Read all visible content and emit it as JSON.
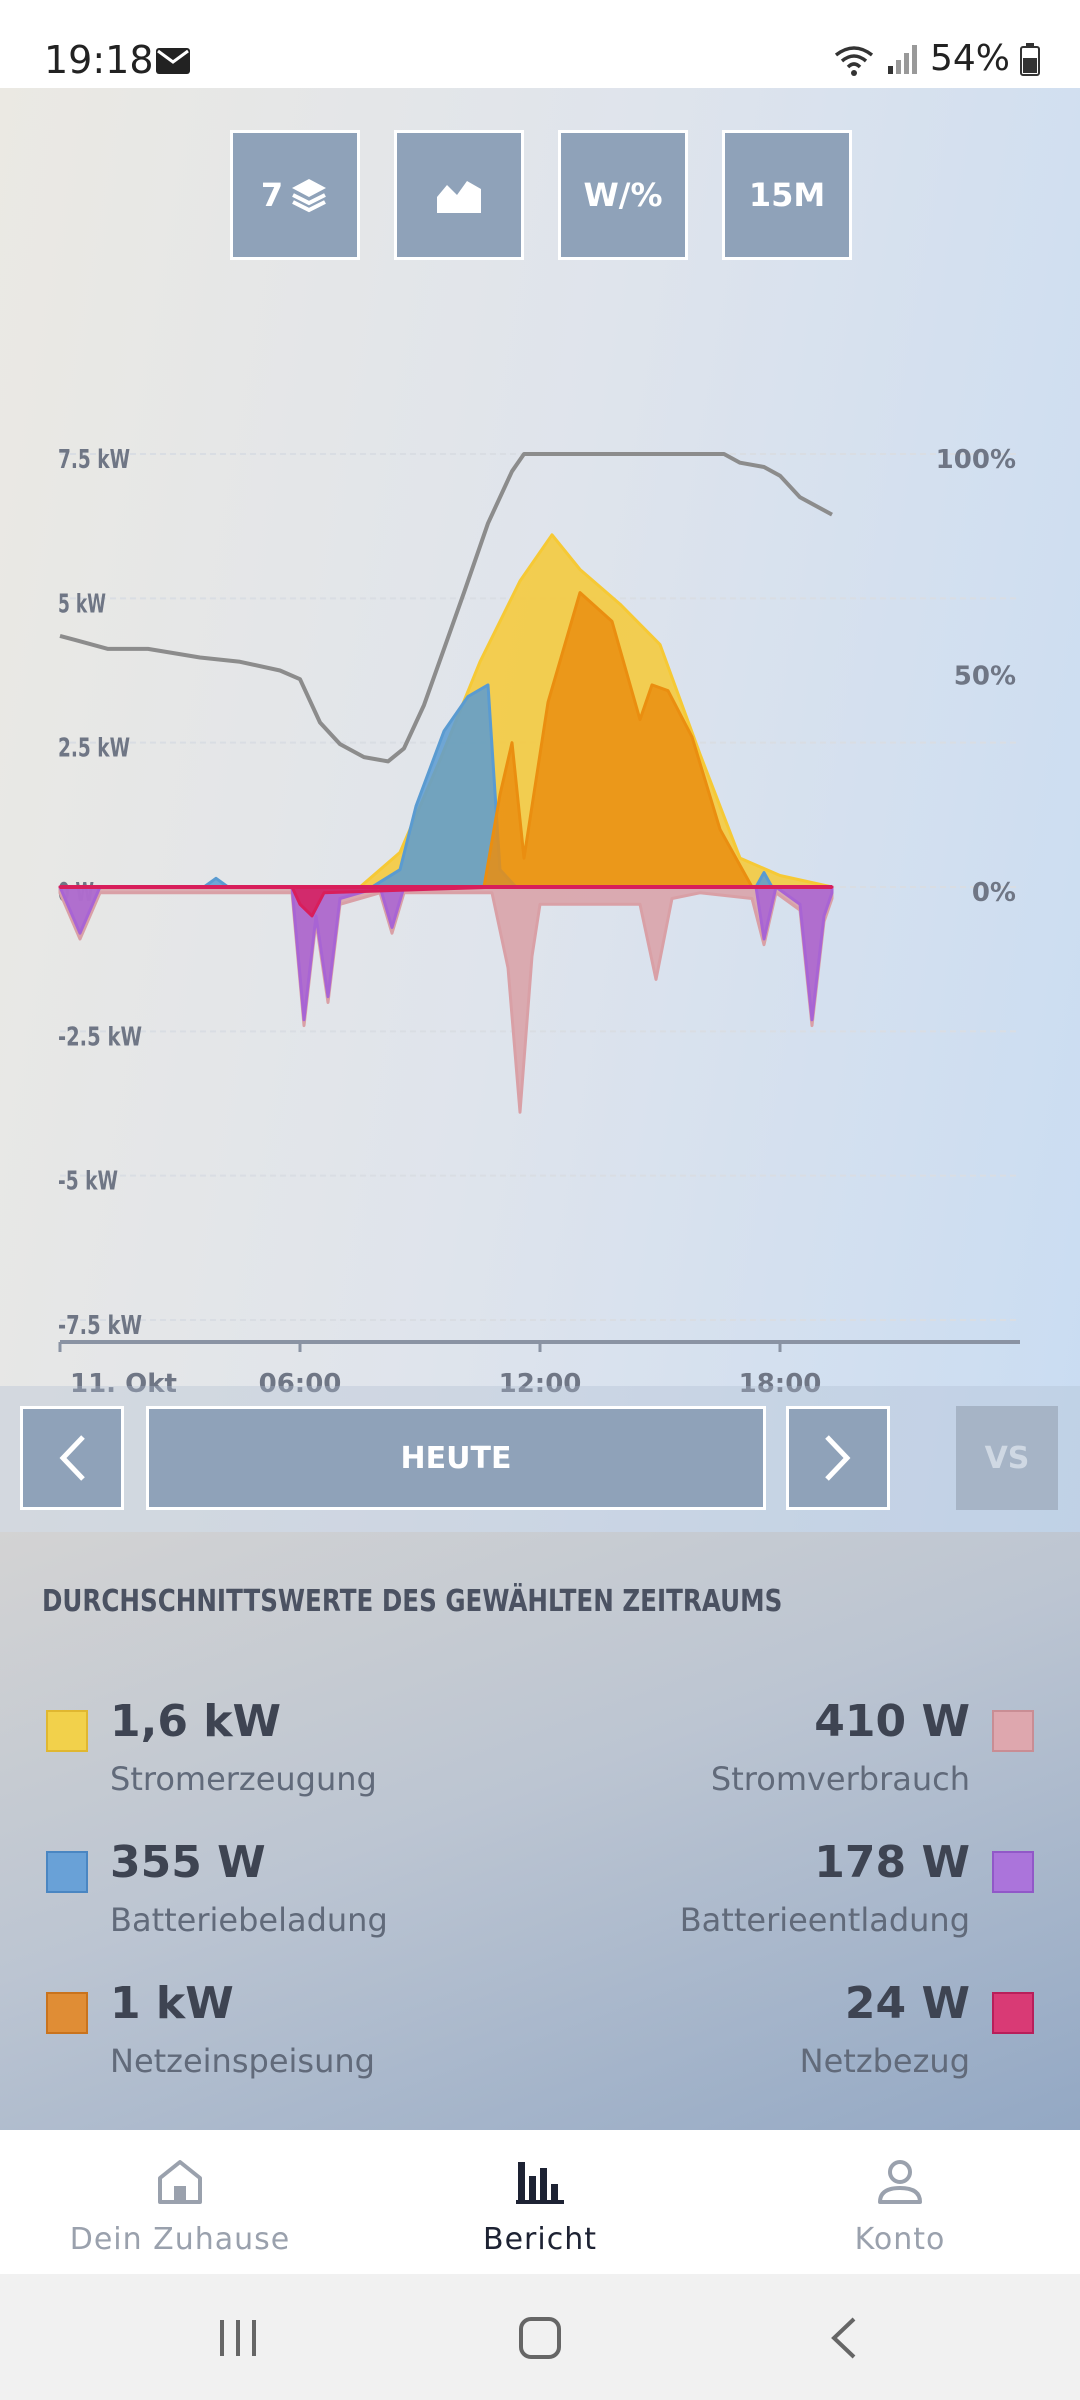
{
  "status_bar": {
    "time": "19:18",
    "battery": "54%"
  },
  "toolbar": {
    "layers_label": "7",
    "unit_label": "W/%",
    "interval_label": "15M"
  },
  "chart_data": {
    "type": "area",
    "y_left_ticks": [
      "7.5 kW",
      "5 kW",
      "2.5 kW",
      "0 W",
      "-2.5 kW",
      "-5 kW",
      "-7.5 kW"
    ],
    "y_left_range_kw": [
      -7.5,
      7.5
    ],
    "y_right_ticks": [
      "100%",
      "50%",
      "0%"
    ],
    "y_right_range_pct": [
      0,
      100
    ],
    "x_ticks": [
      "11. Okt",
      "06:00",
      "12:00",
      "18:00"
    ],
    "x_unit": "hours",
    "x_range": [
      0,
      24
    ],
    "grid": true,
    "series": [
      {
        "name": "Stromerzeugung",
        "color": "#f6c935",
        "kind": "area",
        "x": [
          0,
          7.5,
          8.5,
          9.5,
          10.5,
          11.5,
          12.3,
          13.0,
          14.0,
          15.0,
          16.0,
          17.0,
          18.0,
          19.3
        ],
        "y": [
          0,
          0,
          0.6,
          2.2,
          3.9,
          5.3,
          6.1,
          5.5,
          4.9,
          4.2,
          2.3,
          0.5,
          0.2,
          0
        ]
      },
      {
        "name": "Batteriebeladung",
        "color": "#5a9bd1",
        "kind": "area",
        "x": [
          0,
          3.6,
          3.9,
          4.2,
          7.8,
          8.5,
          8.9,
          9.6,
          10.2,
          10.7,
          11.0,
          11.4,
          16.0,
          17.4,
          17.6,
          17.8,
          19.3
        ],
        "y": [
          0,
          0,
          0.15,
          0,
          0,
          0.3,
          1.4,
          2.7,
          3.3,
          3.5,
          0.3,
          0,
          0,
          0,
          0.25,
          0,
          0
        ]
      },
      {
        "name": "Netzeinspeisung",
        "color": "#ea8e10",
        "kind": "area",
        "x": [
          0,
          10.6,
          11.0,
          11.3,
          11.6,
          12.2,
          13.0,
          13.8,
          14.5,
          14.8,
          15.2,
          15.8,
          16.5,
          17.3,
          19.3
        ],
        "y": [
          0,
          0,
          1.6,
          2.5,
          0.5,
          3.2,
          5.1,
          4.6,
          2.9,
          3.5,
          3.4,
          2.6,
          1.0,
          0,
          0
        ]
      },
      {
        "name": "Stromverbrauch",
        "color": "#d9a0a6",
        "kind": "area",
        "x": [
          0,
          0.5,
          1.0,
          5.8,
          6.1,
          6.4,
          6.7,
          7.0,
          8.0,
          8.3,
          8.6,
          10.8,
          11.2,
          11.5,
          11.8,
          12.0,
          14.5,
          14.9,
          15.3,
          16.0,
          17.3,
          17.6,
          17.9,
          18.5,
          18.8,
          19.1,
          19.3
        ],
        "y": [
          -0.1,
          -0.9,
          -0.1,
          -0.1,
          -2.4,
          -0.6,
          -2.0,
          -0.3,
          -0.1,
          -0.8,
          -0.1,
          -0.1,
          -1.4,
          -3.9,
          -1.2,
          -0.3,
          -0.3,
          -1.6,
          -0.2,
          -0.1,
          -0.2,
          -1.0,
          -0.1,
          -0.4,
          -2.4,
          -0.6,
          -0.2
        ]
      },
      {
        "name": "Batterieentladung",
        "color": "#a864d4",
        "kind": "area",
        "x": [
          0,
          0.5,
          1.0,
          5.8,
          6.1,
          6.4,
          6.7,
          7.0,
          8.0,
          8.3,
          8.6,
          11.0,
          17.4,
          17.6,
          17.9,
          18.5,
          18.8,
          19.1,
          19.3
        ],
        "y": [
          0,
          -0.8,
          0,
          0,
          -2.3,
          -0.5,
          -1.9,
          -0.2,
          0,
          -0.7,
          0,
          0,
          0,
          -0.9,
          0,
          -0.3,
          -2.3,
          -0.5,
          -0.1
        ]
      },
      {
        "name": "Netzbezug",
        "color": "#d81e5b",
        "kind": "area",
        "x": [
          0,
          5.8,
          6.0,
          6.3,
          6.6,
          11.0,
          19.3
        ],
        "y": [
          0,
          0,
          -0.3,
          -0.5,
          -0.1,
          0,
          0
        ]
      },
      {
        "name": "battery_soc",
        "color": "#8c8c8c",
        "kind": "line",
        "axis": "right",
        "x": [
          0,
          0.4,
          1.2,
          2.2,
          3.5,
          4.5,
          5.5,
          6.0,
          6.5,
          7.0,
          7.6,
          8.2,
          8.6,
          9.1,
          9.6,
          10.1,
          10.7,
          11.3,
          11.6,
          12.5,
          14.0,
          15.5,
          16.6,
          17.0,
          17.6,
          18.0,
          18.5,
          19.3
        ],
        "y": [
          58,
          57,
          55,
          55,
          53,
          52,
          50,
          48,
          38,
          33,
          30,
          29,
          32,
          42,
          55,
          68,
          84,
          96,
          100,
          100,
          100,
          100,
          100,
          98,
          97,
          95,
          90,
          86
        ]
      }
    ]
  },
  "navigation": {
    "prev_label": "‹",
    "period_label": "HEUTE",
    "next_label": "›",
    "compare_label": "VS"
  },
  "summary": {
    "title": "DURCHSCHNITTSWERTE DES GEWÄHLTEN ZEITRAUMS",
    "items": [
      {
        "value": "1,6 kW",
        "label": "Stromerzeugung",
        "color": "#f2d14b",
        "border": "#e0b730"
      },
      {
        "value": "410 W",
        "label": "Stromverbrauch",
        "color": "#dea7ae",
        "border": "#c98d94"
      },
      {
        "value": "355 W",
        "label": "Batteriebeladung",
        "color": "#69a1d7",
        "border": "#4a86c2"
      },
      {
        "value": "178 W",
        "label": "Batterieentladung",
        "color": "#ab74db",
        "border": "#9158c8"
      },
      {
        "value": "1 kW",
        "label": "Netzeinspeisung",
        "color": "#e08d35",
        "border": "#c9731d"
      },
      {
        "value": "24 W",
        "label": "Netzbezug",
        "color": "#d93a75",
        "border": "#b81f5a"
      }
    ]
  },
  "bottom_nav": [
    {
      "label": "Dein Zuhause",
      "icon": "home-icon",
      "active": false
    },
    {
      "label": "Bericht",
      "icon": "bar-chart-icon",
      "active": true
    },
    {
      "label": "Konto",
      "icon": "person-icon",
      "active": false
    }
  ]
}
